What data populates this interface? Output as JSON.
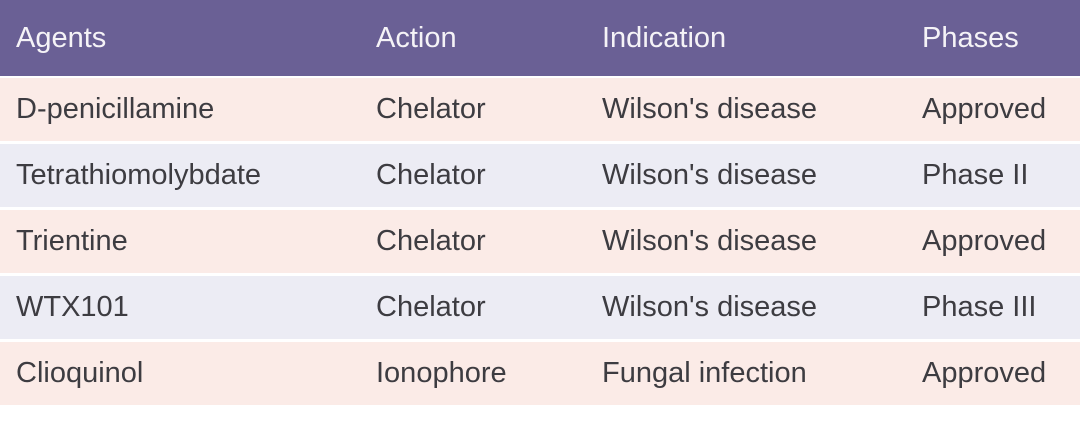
{
  "table": {
    "name": "copper-modulating-agents-table",
    "colors": {
      "header_bg": "#6a6095",
      "header_text": "#f5f3f7",
      "row_odd_bg": "#fbebe7",
      "row_even_bg": "#ececf4",
      "cell_text": "#3d3c41",
      "separator": "#ffffff"
    },
    "columns": [
      {
        "label": "Agents"
      },
      {
        "label": "Action"
      },
      {
        "label": "Indication"
      },
      {
        "label": "Phases"
      }
    ],
    "rows": [
      {
        "agent": "D-penicillamine",
        "action": "Chelator",
        "indication": "Wilson's disease",
        "phase": "Approved"
      },
      {
        "agent": "Tetrathiomolybdate",
        "action": "Chelator",
        "indication": "Wilson's disease",
        "phase": "Phase II"
      },
      {
        "agent": "Trientine",
        "action": "Chelator",
        "indication": "Wilson's disease",
        "phase": "Approved"
      },
      {
        "agent": "WTX101",
        "action": "Chelator",
        "indication": "Wilson's disease",
        "phase": "Phase III"
      },
      {
        "agent": "Clioquinol",
        "action": "Ionophore",
        "indication": "Fungal infection",
        "phase": "Approved"
      }
    ]
  }
}
